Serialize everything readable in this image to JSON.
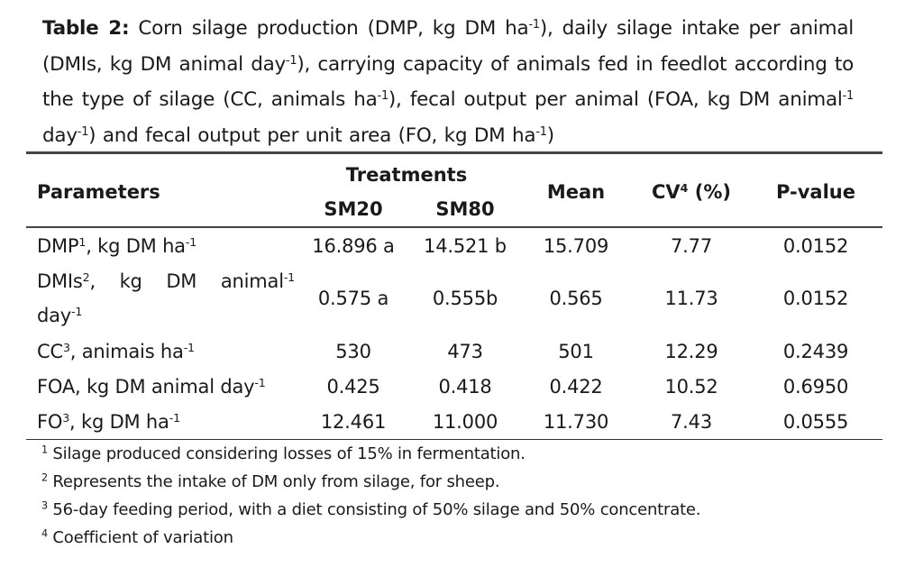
{
  "caption": {
    "label": "Table 2:",
    "parts": {
      "p1": " Corn silage production (DMP, kg DM ha",
      "s1": "-1",
      "p2": "), daily silage intake per animal (DMIs, kg DM animal day",
      "s2": "-1",
      "p3": "), carrying capacity of animals fed in feedlot according to the type of silage (CC, animals ha",
      "s3": "-1",
      "p4": "), fecal output per animal (FOA, kg DM animal",
      "s4": "-1",
      "p5": " day",
      "s5": "-1",
      "p6": ") and fecal output per unit area (FO, kg DM ha",
      "s6": "-1",
      "p7": ")"
    }
  },
  "table": {
    "headers": {
      "parameters": "Parameters",
      "treatments": "Treatments",
      "sm20": "SM20",
      "sm80": "SM80",
      "mean": "Mean",
      "cv": "CV",
      "cv_sup": "4",
      "cv_unit": " (%)",
      "pvalue": "P-value"
    },
    "rows": [
      {
        "param": {
          "a": "DMP",
          "sa": "1",
          "b": ", kg DM ha",
          "sb": "-1",
          "c": "",
          "sc": ""
        },
        "sm20": "16.896 a",
        "sm80": "14.521 b",
        "mean": "15.709",
        "cv": "7.77",
        "p": "0.0152"
      },
      {
        "param": {
          "a": "DMIs",
          "sa": "2",
          "b": ", kg DM animal",
          "sb": "-1",
          "c": " day",
          "sc": "-1"
        },
        "sm20": "0.575 a",
        "sm80": "0.555b",
        "mean": "0.565",
        "cv": "11.73",
        "p": "0.0152"
      },
      {
        "param": {
          "a": "CC",
          "sa": "3",
          "b": ", animais ha",
          "sb": "-1",
          "c": "",
          "sc": ""
        },
        "sm20": "530",
        "sm80": "473",
        "mean": "501",
        "cv": "12.29",
        "p": "0.2439"
      },
      {
        "param": {
          "a": "FOA, kg DM animal day",
          "sa": "-1",
          "b": "",
          "sb": "",
          "c": "",
          "sc": ""
        },
        "sm20": "0.425",
        "sm80": "0.418",
        "mean": "0.422",
        "cv": "10.52",
        "p": "0.6950"
      },
      {
        "param": {
          "a": "FO",
          "sa": "3",
          "b": ", kg DM ha",
          "sb": "-1",
          "c": "",
          "sc": ""
        },
        "sm20": "12.461",
        "sm80": "11.000",
        "mean": "11.730",
        "cv": "7.43",
        "p": "0.0555"
      }
    ]
  },
  "footnotes": [
    {
      "mark": "1",
      "text": " Silage produced considering losses of 15% in fermentation."
    },
    {
      "mark": "2",
      "text": " Represents the intake of DM only from silage, for sheep."
    },
    {
      "mark": "3",
      "text": " 56-day feeding period, with a diet consisting of 50% silage and 50% concentrate."
    },
    {
      "mark": "4",
      "text": " Coefficient of variation"
    }
  ]
}
